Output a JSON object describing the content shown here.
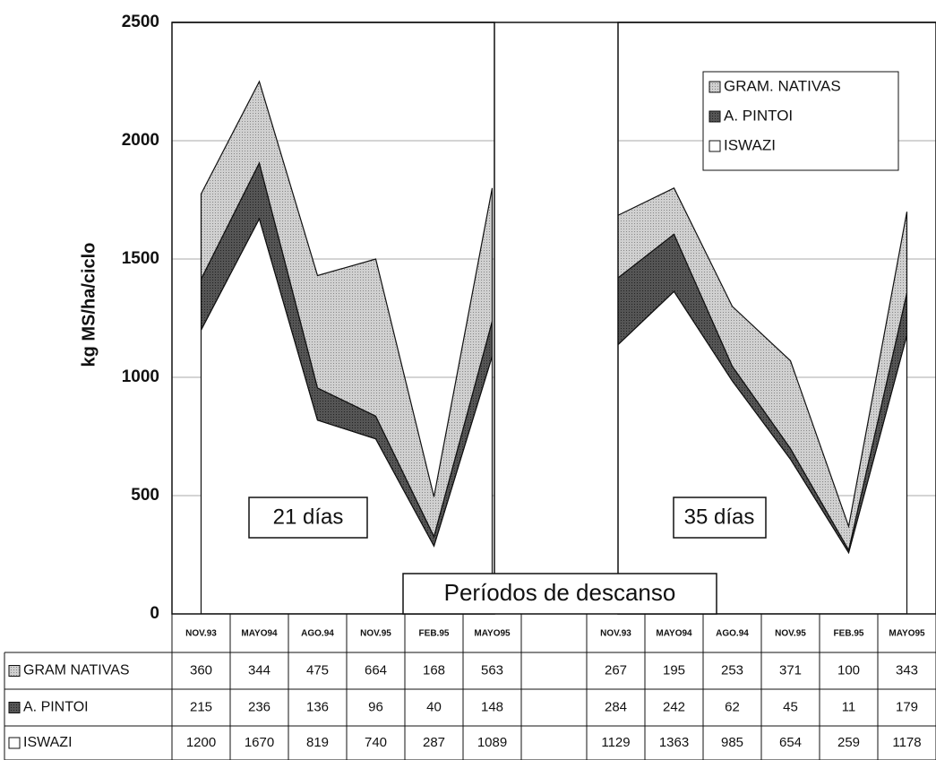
{
  "chart_data": {
    "type": "area",
    "stacked": true,
    "ylabel": "kg MS/ha/ciclo",
    "xlabel": "Períodos de descanso",
    "ylim": [
      0,
      2500
    ],
    "yticks": [
      0,
      500,
      1000,
      1500,
      2000,
      2500
    ],
    "grid": true,
    "legend_position": "upper right",
    "series_names": [
      "GRAM. NATIVAS",
      "A. PINTOI",
      "ISWAZI"
    ],
    "table_row_labels": [
      "GRAM NATIVAS",
      "A. PINTOI",
      "ISWAZI"
    ],
    "colors": [
      "#c8c8c8",
      "#4a4a4a",
      "#ffffff"
    ],
    "panels": [
      {
        "label": "21 días",
        "categories": [
          "NOV.93",
          "MAYO94",
          "AGO.94",
          "NOV.95",
          "FEB.95",
          "MAYO95"
        ],
        "series": [
          {
            "values": [
              360,
              344,
              475,
              664,
              168,
              563
            ]
          },
          {
            "values": [
              215,
              236,
              136,
              96,
              40,
              148
            ]
          },
          {
            "values": [
              1200,
              1670,
              819,
              740,
              287,
              1089
            ]
          }
        ]
      },
      {
        "label": "35 días",
        "categories": [
          "NOV.93",
          "MAYO94",
          "AGO.94",
          "NOV.95",
          "FEB.95",
          "MAYO95"
        ],
        "series": [
          {
            "values": [
              267,
              195,
              253,
              371,
              100,
              343
            ]
          },
          {
            "values": [
              284,
              242,
              62,
              45,
              11,
              179
            ]
          },
          {
            "values": [
              1129,
              1363,
              985,
              654,
              259,
              1178
            ]
          }
        ]
      }
    ]
  }
}
